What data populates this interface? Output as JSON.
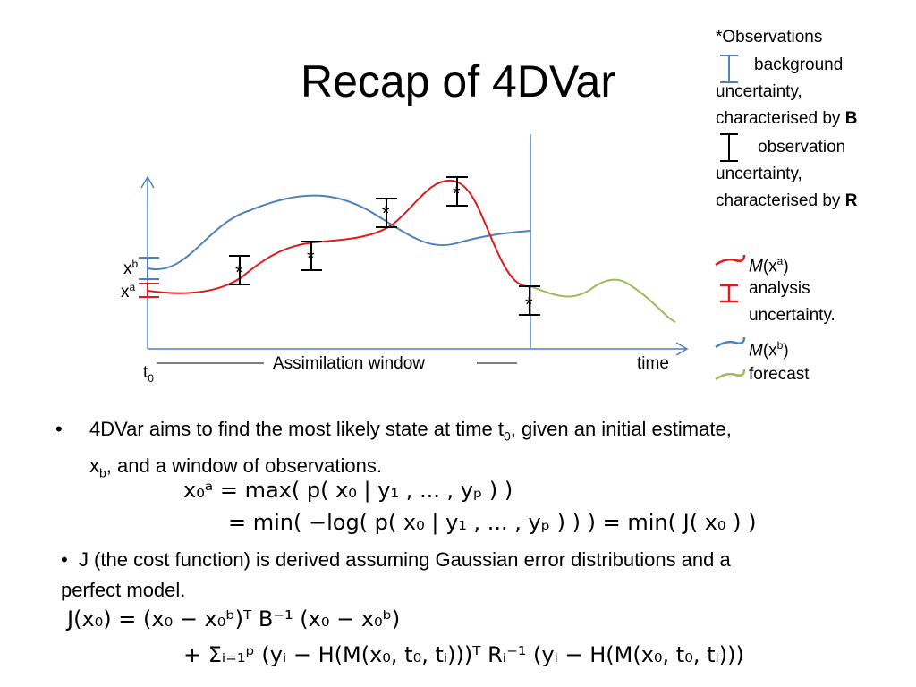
{
  "title": "Recap of 4DVar",
  "legend": {
    "heading": "*Observations",
    "background_label": "background uncertainty, characterised by",
    "background_bold": "B",
    "observation_label": "observation uncertainty, characterised by",
    "observation_bold": "R",
    "analysis_traj": "M(xa)",
    "analysis_unc": "analysis uncertainty.",
    "background_traj": "M(xb)",
    "forecast": "forecast",
    "colors": {
      "analysis": "#e31a1c",
      "background": "#4f81bd",
      "forecast": "#9bbb59"
    }
  },
  "diagram": {
    "xb_label": "x",
    "xb_sup": "b",
    "xa_label": "x",
    "xa_sup": "a",
    "t0_label": "t",
    "t0_sub": "0",
    "window_label": "Assimilation window",
    "time_label": "time",
    "star": "*"
  },
  "bullet1": {
    "text_before": "4DVar aims to find the most likely state at time t",
    "t_sub": "0",
    "text_after": ", given an initial estimate,",
    "line2_pre": "x",
    "line2_sub": "b",
    "line2_post": ", and a window of observations."
  },
  "eq1": {
    "line1": "x₀ᵃ  = max( p( x₀ | y₁ , ... , yₚ ) )",
    "line2": "= min( −log( p( x₀ | y₁ , ... , yₚ ) ) ) = min( J( x₀ ) )"
  },
  "bullet2": {
    "line1": "J (the cost function) is derived assuming Gaussian error distributions and a",
    "line2": "perfect model."
  },
  "eq2": {
    "line1": "J(x₀) =   (x₀ − x₀ᵇ)ᵀ B⁻¹ (x₀ − x₀ᵇ)",
    "line2": "+ Σᵢ₌₁ᵖ (yᵢ − H(M(x₀, t₀, tᵢ)))ᵀ Rᵢ⁻¹ (yᵢ − H(M(x₀, t₀, tᵢ)))"
  }
}
